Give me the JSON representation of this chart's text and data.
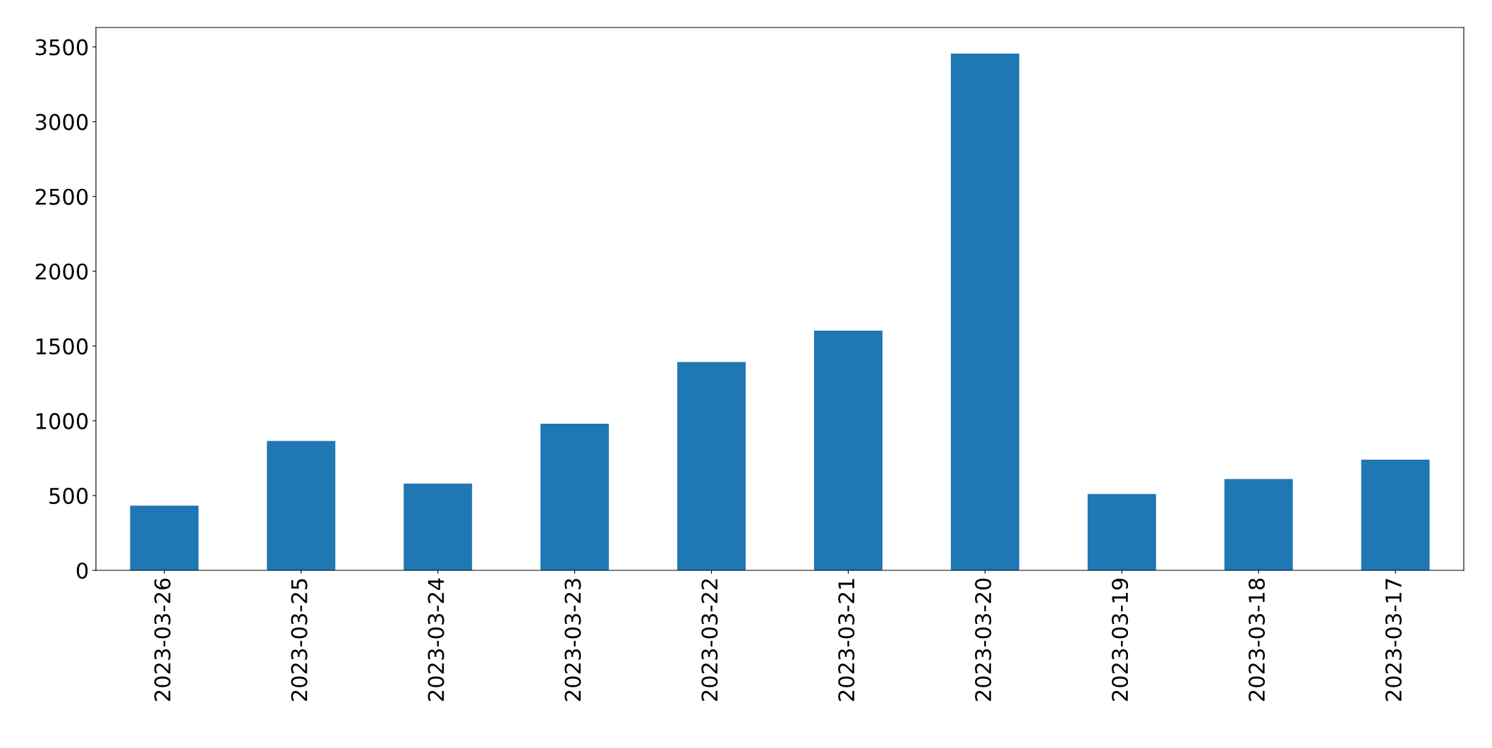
{
  "chart_data": {
    "type": "bar",
    "categories": [
      "2023-03-26",
      "2023-03-25",
      "2023-03-24",
      "2023-03-23",
      "2023-03-22",
      "2023-03-21",
      "2023-03-20",
      "2023-03-19",
      "2023-03-18",
      "2023-03-17"
    ],
    "values": [
      433,
      865,
      580,
      980,
      1393,
      1603,
      3455,
      510,
      610,
      740
    ],
    "color": "#1f77b4",
    "ylim": [
      0,
      3630
    ],
    "yticks": [
      0,
      500,
      1000,
      1500,
      2000,
      2500,
      3000,
      3500
    ],
    "grid": false,
    "legend": false
  }
}
